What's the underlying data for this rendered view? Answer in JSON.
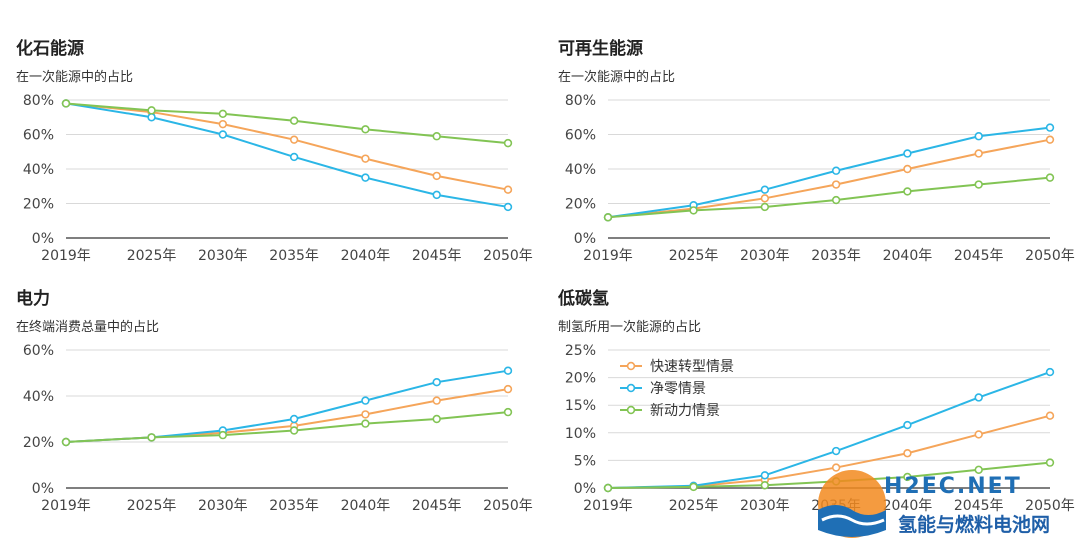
{
  "colors": {
    "fast_transition": "#f5a55a",
    "net_zero": "#2bb6e6",
    "new_momentum": "#82c454",
    "grid": "#d9d9d9",
    "axis": "#555555"
  },
  "chart_data": [
    {
      "type": "line",
      "title": "化石能源",
      "subtitle": "在一次能源中的占比",
      "categories": [
        "2019年",
        "2025年",
        "2030年",
        "2035年",
        "2040年",
        "2045年",
        "2050年"
      ],
      "x": [
        2019,
        2025,
        2030,
        2035,
        2040,
        2045,
        2050
      ],
      "yticks": [
        "0%",
        "20%",
        "40%",
        "60%",
        "80%"
      ],
      "ylim": [
        0,
        80
      ],
      "series": [
        {
          "key": "fast_transition",
          "values": [
            78,
            73,
            66,
            57,
            46,
            36,
            28
          ]
        },
        {
          "key": "net_zero",
          "values": [
            78,
            70,
            60,
            47,
            35,
            25,
            18
          ]
        },
        {
          "key": "new_momentum",
          "values": [
            78,
            74,
            72,
            68,
            63,
            59,
            55
          ]
        }
      ]
    },
    {
      "type": "line",
      "title": "可再生能源",
      "subtitle": "在一次能源中的占比",
      "categories": [
        "2019年",
        "2025年",
        "2030年",
        "2035年",
        "2040年",
        "2045年",
        "2050年"
      ],
      "x": [
        2019,
        2025,
        2030,
        2035,
        2040,
        2045,
        2050
      ],
      "yticks": [
        "0%",
        "20%",
        "40%",
        "60%",
        "80%"
      ],
      "ylim": [
        0,
        80
      ],
      "series": [
        {
          "key": "fast_transition",
          "values": [
            12,
            17,
            23,
            31,
            40,
            49,
            57
          ]
        },
        {
          "key": "net_zero",
          "values": [
            12,
            19,
            28,
            39,
            49,
            59,
            64
          ]
        },
        {
          "key": "new_momentum",
          "values": [
            12,
            16,
            18,
            22,
            27,
            31,
            35
          ]
        }
      ]
    },
    {
      "type": "line",
      "title": "电力",
      "subtitle": "在终端消费总量中的占比",
      "categories": [
        "2019年",
        "2025年",
        "2030年",
        "2035年",
        "2040年",
        "2045年",
        "2050年"
      ],
      "x": [
        2019,
        2025,
        2030,
        2035,
        2040,
        2045,
        2050
      ],
      "yticks": [
        "0%",
        "20%",
        "40%",
        "60%"
      ],
      "ylim": [
        0,
        60
      ],
      "series": [
        {
          "key": "fast_transition",
          "values": [
            20,
            22,
            24,
            27,
            32,
            38,
            43
          ]
        },
        {
          "key": "net_zero",
          "values": [
            20,
            22,
            25,
            30,
            38,
            46,
            51
          ]
        },
        {
          "key": "new_momentum",
          "values": [
            20,
            22,
            23,
            25,
            28,
            30,
            33
          ]
        }
      ]
    },
    {
      "type": "line",
      "title": "低碳氢",
      "subtitle": "制氢所用一次能源的占比",
      "categories": [
        "2019年",
        "2025年",
        "2030年",
        "2035年",
        "2040年",
        "2045年",
        "2050年"
      ],
      "x": [
        2019,
        2025,
        2030,
        2035,
        2040,
        2045,
        2050
      ],
      "yticks": [
        "0%",
        "5%",
        "10%",
        "15%",
        "20%",
        "25%"
      ],
      "ylim": [
        0,
        25
      ],
      "legend": "top-left",
      "series": [
        {
          "key": "fast_transition",
          "name": "快速转型情景",
          "values": [
            0,
            0.3,
            1.5,
            3.7,
            6.3,
            9.7,
            13.1
          ]
        },
        {
          "key": "net_zero",
          "name": "净零情景",
          "values": [
            0,
            0.4,
            2.3,
            6.7,
            11.4,
            16.4,
            21.0
          ]
        },
        {
          "key": "new_momentum",
          "name": "新动力情景",
          "values": [
            0,
            0.2,
            0.5,
            1.2,
            2.0,
            3.3,
            4.6
          ]
        }
      ]
    }
  ],
  "watermark": {
    "brand": "H2EC.NET",
    "text": "氢能与燃料电池网"
  }
}
